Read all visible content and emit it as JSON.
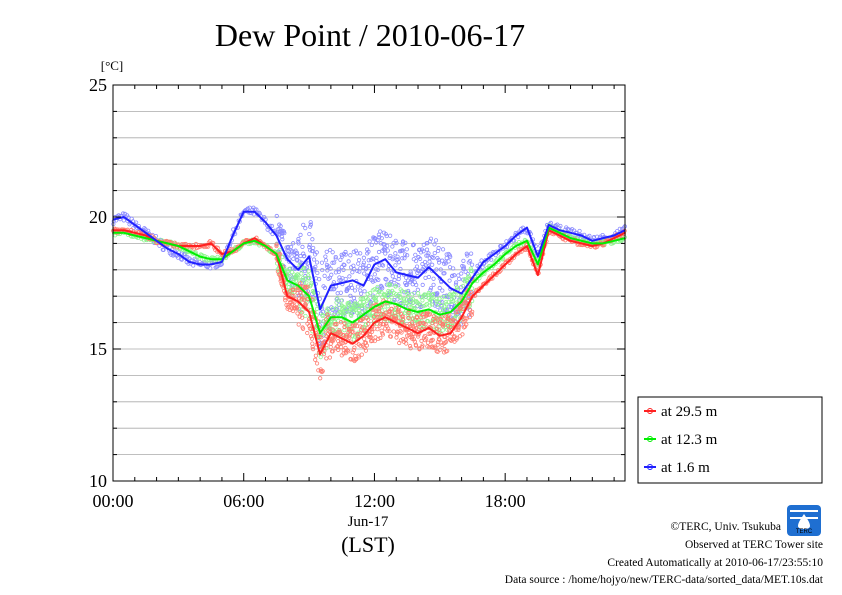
{
  "chart_data": {
    "type": "line",
    "title": "Dew Point / 2010-06-17",
    "ylabel": "[°C]",
    "xlabel": "(LST)",
    "x_date_label": "Jun-17",
    "x_ticks": [
      "00:00",
      "06:00",
      "12:00",
      "18:00"
    ],
    "y_ticks": [
      "10",
      "15",
      "20",
      "25"
    ],
    "xlim": [
      0,
      23.5
    ],
    "ylim": [
      10,
      25
    ],
    "grid": true,
    "legend_position": "bottom-right",
    "series": [
      {
        "name": "at 29.5 m",
        "color": "#ff2020",
        "x": [
          0,
          0.5,
          1,
          1.5,
          2,
          2.5,
          3,
          3.5,
          4,
          4.5,
          5,
          5.5,
          6,
          6.5,
          7,
          7.5,
          8,
          8.5,
          9,
          9.5,
          10,
          10.5,
          11,
          11.5,
          12,
          12.5,
          13,
          13.5,
          14,
          14.5,
          15,
          15.5,
          16,
          16.5,
          17,
          17.5,
          18,
          18.5,
          19,
          19.5,
          20,
          20.5,
          21,
          21.5,
          22,
          22.5,
          23,
          23.5
        ],
        "y": [
          19.5,
          19.5,
          19.4,
          19.3,
          19.1,
          19.0,
          18.9,
          18.9,
          18.9,
          19.0,
          18.6,
          18.7,
          19.0,
          19.2,
          18.9,
          18.6,
          17.0,
          16.8,
          16.4,
          14.8,
          15.6,
          15.4,
          15.2,
          15.5,
          16.0,
          16.2,
          16.0,
          15.8,
          15.6,
          15.8,
          15.5,
          15.6,
          16.2,
          17.0,
          17.4,
          17.8,
          18.2,
          18.6,
          18.9,
          17.8,
          19.5,
          19.3,
          19.1,
          19.0,
          18.9,
          19.0,
          19.2,
          19.4
        ]
      },
      {
        "name": "at 12.3 m",
        "color": "#00ee00",
        "x": [
          0,
          0.5,
          1,
          1.5,
          2,
          2.5,
          3,
          3.5,
          4,
          4.5,
          5,
          5.5,
          6,
          6.5,
          7,
          7.5,
          8,
          8.5,
          9,
          9.5,
          10,
          10.5,
          11,
          11.5,
          12,
          12.5,
          13,
          13.5,
          14,
          14.5,
          15,
          15.5,
          16,
          16.5,
          17,
          17.5,
          18,
          18.5,
          19,
          19.5,
          20,
          20.5,
          21,
          21.5,
          22,
          22.5,
          23,
          23.5
        ],
        "y": [
          19.4,
          19.4,
          19.3,
          19.2,
          19.1,
          19.0,
          18.9,
          18.7,
          18.5,
          18.4,
          18.4,
          18.7,
          19.0,
          19.1,
          18.9,
          18.6,
          17.6,
          17.4,
          17.0,
          15.6,
          16.2,
          16.2,
          16.0,
          16.3,
          16.6,
          16.8,
          16.7,
          16.5,
          16.4,
          16.5,
          16.3,
          16.4,
          16.8,
          17.5,
          17.9,
          18.2,
          18.6,
          18.9,
          19.1,
          18.2,
          19.6,
          19.4,
          19.2,
          19.1,
          19.0,
          19.0,
          19.1,
          19.2
        ]
      },
      {
        "name": "at 1.6 m",
        "color": "#2020ff",
        "x": [
          0,
          0.5,
          1,
          1.5,
          2,
          2.5,
          3,
          3.5,
          4,
          4.5,
          5,
          5.5,
          6,
          6.5,
          7,
          7.5,
          8,
          8.5,
          9,
          9.5,
          10,
          10.5,
          11,
          11.5,
          12,
          12.5,
          13,
          13.5,
          14,
          14.5,
          15,
          15.5,
          16,
          16.5,
          17,
          17.5,
          18,
          18.5,
          19,
          19.5,
          20,
          20.5,
          21,
          21.5,
          22,
          22.5,
          23,
          23.5
        ],
        "y": [
          19.9,
          20.0,
          19.7,
          19.4,
          19.1,
          18.8,
          18.6,
          18.3,
          18.2,
          18.2,
          18.3,
          19.3,
          20.2,
          20.2,
          19.8,
          19.3,
          18.4,
          18.0,
          18.5,
          16.5,
          17.4,
          17.5,
          17.6,
          17.4,
          18.2,
          18.4,
          17.9,
          17.8,
          17.7,
          18.1,
          17.7,
          17.3,
          17.1,
          17.7,
          18.3,
          18.6,
          18.9,
          19.3,
          19.6,
          18.5,
          19.7,
          19.5,
          19.4,
          19.3,
          19.1,
          19.2,
          19.3,
          19.5
        ]
      }
    ]
  },
  "footer": {
    "copyright": "©TERC, Univ. Tsukuba",
    "observed": "Observed at TERC Tower site",
    "created": "Created Automatically at 2010-06-17/23:55:10",
    "source": "Data source : /home/hojyo/new/TERC-data/sorted_data/MET.10s.dat",
    "logo_text": "TERC"
  }
}
